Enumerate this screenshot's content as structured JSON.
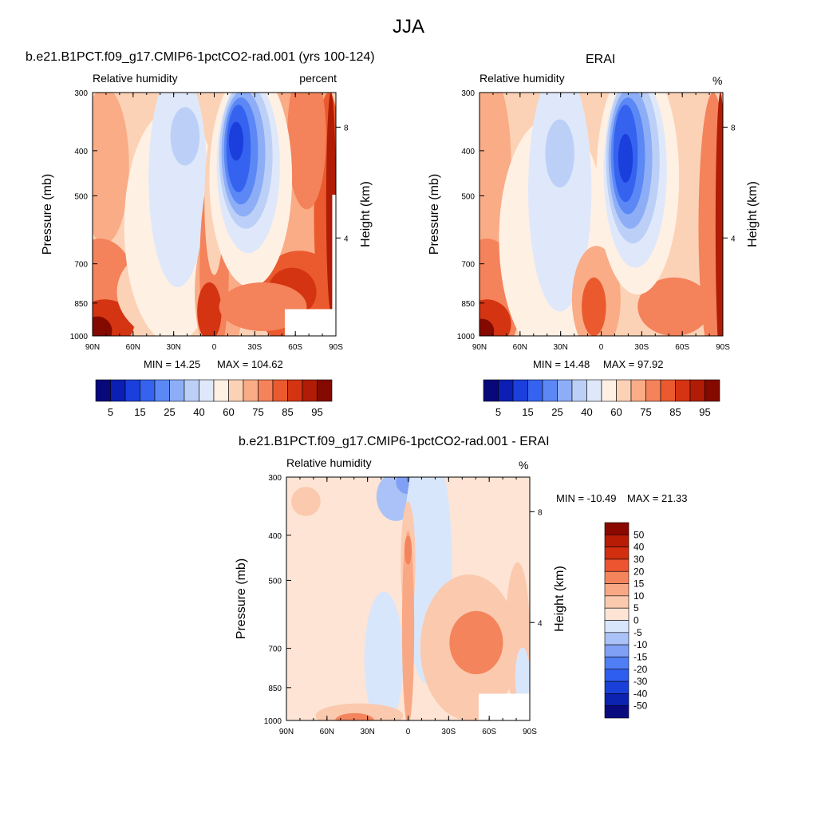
{
  "figure": {
    "title": "JJA"
  },
  "colorbar_colors": [
    "#08087a",
    "#0b1fb4",
    "#1a3fdc",
    "#3563f0",
    "#5b88f5",
    "#8daef7",
    "#bcd0f7",
    "#dfe8fa",
    "#fff0e4",
    "#fcd2b6",
    "#f9ac86",
    "#f4825a",
    "#ea5a2e",
    "#d43412",
    "#b01c05",
    "#840a00"
  ],
  "chart_data": [
    {
      "type": "heatmap",
      "title": "b.e21.B1PCT.f09_g17.CMIP6-1pctCO2-rad.001 (yrs 100-124)",
      "left_label": "Relative humidity",
      "right_label": "percent",
      "xlabel": "",
      "ylabel": "Pressure (mb)",
      "y2label": "Height (km)",
      "x_ticks": [
        "90N",
        "60N",
        "30N",
        "0",
        "30S",
        "60S",
        "90S"
      ],
      "y_ticks": [
        300,
        400,
        500,
        700,
        850,
        1000
      ],
      "y2_ticks": [
        8,
        4
      ],
      "ylim": [
        1000,
        300
      ],
      "y_scale": "log",
      "min_label": "MIN =  14.25",
      "max_label": "MAX = 104.62",
      "min": 14.25,
      "max": 104.62,
      "colorbar": {
        "orientation": "horizontal",
        "labels": [
          "5",
          "15",
          "25",
          "40",
          "60",
          "75",
          "85",
          "95"
        ]
      }
    },
    {
      "type": "heatmap",
      "title": "ERAI",
      "left_label": "Relative humidity",
      "right_label": "%",
      "xlabel": "",
      "ylabel": "Pressure (mb)",
      "y2label": "Height (km)",
      "x_ticks": [
        "90N",
        "60N",
        "30N",
        "0",
        "30S",
        "60S",
        "90S"
      ],
      "y_ticks": [
        300,
        400,
        500,
        700,
        850,
        1000
      ],
      "y2_ticks": [
        8,
        4
      ],
      "ylim": [
        1000,
        300
      ],
      "y_scale": "log",
      "min_label": "MIN =  14.48",
      "max_label": "MAX =  97.92",
      "min": 14.48,
      "max": 97.92,
      "colorbar": {
        "orientation": "horizontal",
        "labels": [
          "5",
          "15",
          "25",
          "40",
          "60",
          "75",
          "85",
          "95"
        ]
      }
    },
    {
      "type": "heatmap",
      "title": "b.e21.B1PCT.f09_g17.CMIP6-1pctCO2-rad.001 - ERAI",
      "left_label": "Relative humidity",
      "right_label": "%",
      "xlabel": "",
      "ylabel": "Pressure (mb)",
      "y2label": "Height (km)",
      "x_ticks": [
        "90N",
        "60N",
        "30N",
        "0",
        "30S",
        "60S",
        "90S"
      ],
      "y_ticks": [
        300,
        400,
        500,
        700,
        850,
        1000
      ],
      "y2_ticks": [
        8,
        4
      ],
      "ylim": [
        1000,
        300
      ],
      "y_scale": "log",
      "min_label": "MIN = -10.49",
      "max_label": "MAX =  21.33",
      "min": -10.49,
      "max": 21.33,
      "colorbar": {
        "orientation": "vertical",
        "labels": [
          "50",
          "40",
          "30",
          "20",
          "15",
          "10",
          "5",
          "0",
          "-5",
          "-10",
          "-15",
          "-20",
          "-30",
          "-40",
          "-50"
        ]
      }
    }
  ]
}
